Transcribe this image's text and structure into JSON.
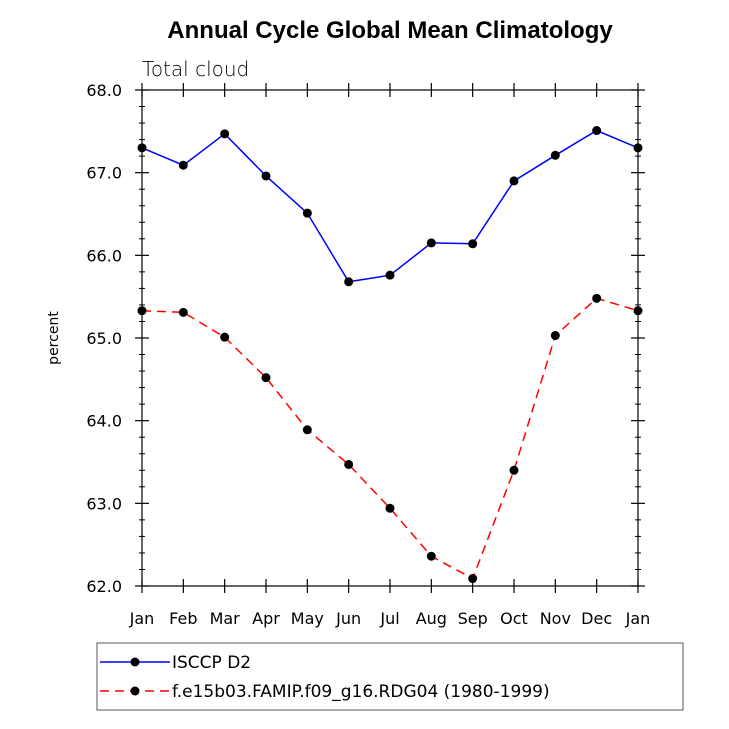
{
  "chart_data": {
    "type": "line",
    "title": "Annual Cycle Global Mean Climatology",
    "subtitle": "Total cloud",
    "xlabel": "",
    "ylabel": "percent",
    "categories": [
      "Jan",
      "Feb",
      "Mar",
      "Apr",
      "May",
      "Jun",
      "Jul",
      "Aug",
      "Sep",
      "Oct",
      "Nov",
      "Dec",
      "Jan"
    ],
    "ylim": [
      62.0,
      68.0
    ],
    "yticks": [
      62.0,
      63.0,
      64.0,
      65.0,
      66.0,
      67.0,
      68.0
    ],
    "ytick_labels": [
      "62.0",
      "63.0",
      "64.0",
      "65.0",
      "66.0",
      "67.0",
      "68.0"
    ],
    "grid": false,
    "legend_position": "bottom",
    "series": [
      {
        "name": "ISCCP D2",
        "color": "#0000ff",
        "dash": "solid",
        "values": [
          67.3,
          67.09,
          67.47,
          66.96,
          66.51,
          65.68,
          65.76,
          66.15,
          66.14,
          66.9,
          67.21,
          67.51,
          67.3
        ]
      },
      {
        "name": "f.e15b03.FAMIP.f09_g16.RDG04 (1980-1999)",
        "color": "#ff0000",
        "dash": "dashed",
        "values": [
          65.33,
          65.31,
          65.01,
          64.52,
          63.89,
          63.47,
          62.94,
          62.36,
          62.09,
          63.4,
          65.03,
          65.48,
          65.33
        ]
      }
    ]
  }
}
